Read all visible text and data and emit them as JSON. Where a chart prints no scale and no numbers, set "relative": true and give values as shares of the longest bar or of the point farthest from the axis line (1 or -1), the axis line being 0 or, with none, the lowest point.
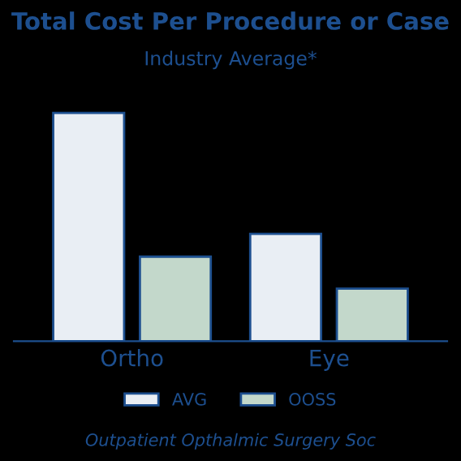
{
  "chart_data": {
    "type": "bar",
    "title": "Total Cost Per Procedure or Case",
    "subtitle": "Industry Average*",
    "categories": [
      "Ortho",
      "Eye"
    ],
    "series": [
      {
        "name": "AVG",
        "color": "#e9eef4",
        "values": [
          1,
          0.47
        ]
      },
      {
        "name": "OOSS",
        "color": "#c3d8cb",
        "values": [
          0.37,
          0.23
        ]
      }
    ],
    "relative": true,
    "legend": "bottom",
    "grid": false,
    "annotations": [
      "Outpatient Opthalmic Surgery Soc"
    ]
  }
}
